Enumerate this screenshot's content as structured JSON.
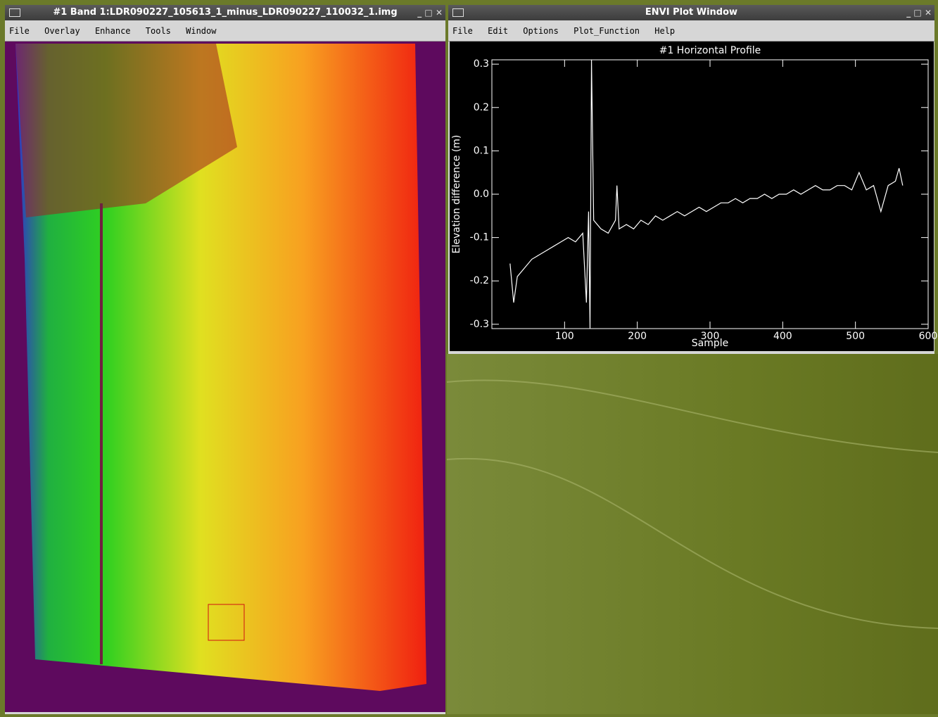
{
  "image_window": {
    "title": "#1 Band 1:LDR090227_105613_1_minus_LDR090227_110032_1.img",
    "menu": [
      "File",
      "Overlay",
      "Enhance",
      "Tools",
      "Window"
    ]
  },
  "plot_window": {
    "title": "ENVI Plot Window",
    "menu": [
      "File",
      "Edit",
      "Options",
      "Plot_Function",
      "Help"
    ]
  },
  "chart_data": {
    "type": "line",
    "title": "#1 Horizontal Profile",
    "x_label": "Sample",
    "y_label": "Elevation difference (m)",
    "xlim": [
      0,
      600
    ],
    "ylim": [
      -0.31,
      0.31
    ],
    "xticks": [
      100,
      200,
      300,
      400,
      500,
      600
    ],
    "yticks": [
      -0.3,
      -0.2,
      -0.1,
      {
        "value": 0,
        "label": "0.0"
      },
      0.1,
      0.2,
      0.3
    ],
    "color": "#ffffff",
    "x": [
      25,
      30,
      35,
      45,
      55,
      65,
      75,
      85,
      95,
      105,
      115,
      125,
      130,
      133,
      135,
      137,
      140,
      150,
      160,
      170,
      172,
      175,
      185,
      195,
      205,
      215,
      225,
      235,
      245,
      255,
      265,
      275,
      285,
      295,
      305,
      315,
      325,
      335,
      345,
      355,
      365,
      375,
      385,
      395,
      405,
      415,
      425,
      435,
      445,
      455,
      465,
      475,
      485,
      495,
      505,
      515,
      525,
      535,
      545,
      555,
      560,
      565
    ],
    "values": [
      -0.16,
      -0.25,
      -0.19,
      -0.17,
      -0.15,
      -0.14,
      -0.13,
      -0.12,
      -0.11,
      -0.1,
      -0.11,
      -0.09,
      -0.25,
      -0.04,
      -0.31,
      0.31,
      -0.06,
      -0.08,
      -0.09,
      -0.06,
      0.02,
      -0.08,
      -0.07,
      -0.08,
      -0.06,
      -0.07,
      -0.05,
      -0.06,
      -0.05,
      -0.04,
      -0.05,
      -0.04,
      -0.03,
      -0.04,
      -0.03,
      -0.02,
      -0.02,
      -0.01,
      -0.02,
      -0.01,
      -0.01,
      0.0,
      -0.01,
      0.0,
      0.0,
      0.01,
      0.0,
      0.01,
      0.02,
      0.01,
      0.01,
      0.02,
      0.02,
      0.01,
      0.05,
      0.01,
      0.02,
      -0.04,
      0.02,
      0.03,
      0.06,
      0.02
    ]
  }
}
